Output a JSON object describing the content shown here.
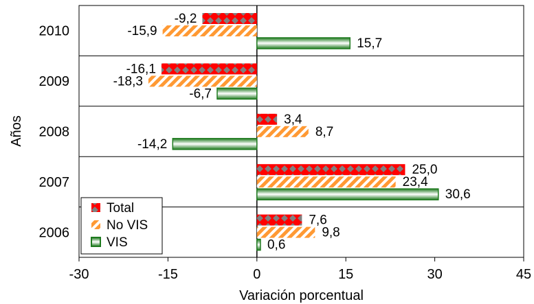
{
  "chart_data": {
    "type": "bar",
    "orientation": "horizontal",
    "categories": [
      "2010",
      "2009",
      "2008",
      "2007",
      "2006"
    ],
    "series": [
      {
        "name": "Total",
        "color": "#ff0000",
        "values": [
          -9.2,
          -16.1,
          3.4,
          25.0,
          7.6
        ],
        "labels": [
          "-9,2",
          "-16,1",
          "3,4",
          "25,0",
          "7,6"
        ]
      },
      {
        "name": "No VIS",
        "color": "#ff9933",
        "values": [
          -15.9,
          -18.3,
          8.7,
          23.4,
          9.8
        ],
        "labels": [
          "-15,9",
          "-18,3",
          "8,7",
          "23,4",
          "9,8"
        ]
      },
      {
        "name": "VIS",
        "color": "#1e7a1e",
        "values": [
          15.7,
          -6.7,
          -14.2,
          30.6,
          0.6
        ],
        "labels": [
          "15,7",
          "-6,7",
          "-14,2",
          "30,6",
          "0,6"
        ]
      }
    ],
    "xlim": [
      -30,
      45
    ],
    "xticks": [
      "-30",
      "-15",
      "0",
      "15",
      "30",
      "45"
    ],
    "xtick_values": [
      -30,
      -15,
      0,
      15,
      30,
      45
    ],
    "xlabel": "Variación porcentual",
    "ylabel": "Años",
    "legend_position": "bottom-left",
    "grid": "horizontal separators between categories"
  }
}
